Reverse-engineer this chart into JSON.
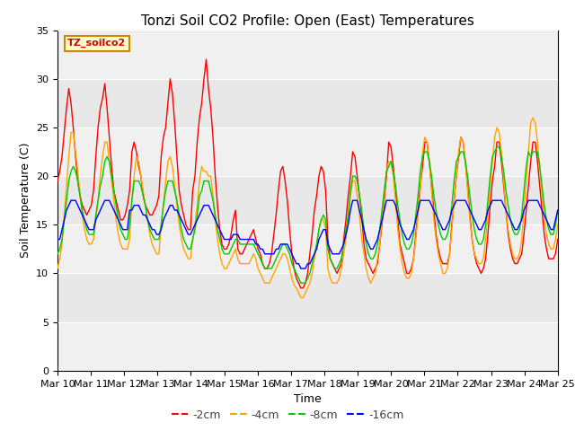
{
  "title": "Tonzi Soil CO2 Profile: Open (East) Temperatures",
  "xlabel": "Time",
  "ylabel": "Soil Temperature (C)",
  "ylim": [
    0,
    35
  ],
  "yticks": [
    0,
    5,
    10,
    15,
    20,
    25,
    30,
    35
  ],
  "legend_label": "TZ_soilco2",
  "series_labels": [
    "-2cm",
    "-4cm",
    "-8cm",
    "-16cm"
  ],
  "series_colors": [
    "#ff0000",
    "#ffa500",
    "#00cc00",
    "#0000ff"
  ],
  "background_color": "#ffffff",
  "plot_bg_color": "#e8e8e8",
  "title_fontsize": 11,
  "axis_fontsize": 9,
  "tick_fontsize": 8,
  "legend_box_facecolor": "#ffffcc",
  "legend_box_edgecolor": "#cc8800",
  "depth_2cm": [
    19.5,
    20.5,
    22.0,
    24.5,
    27.0,
    29.0,
    27.5,
    25.0,
    22.0,
    19.5,
    18.0,
    17.0,
    16.5,
    16.0,
    16.5,
    17.0,
    18.5,
    22.0,
    25.0,
    27.0,
    28.0,
    29.5,
    27.0,
    24.0,
    21.0,
    18.5,
    17.5,
    16.5,
    15.5,
    15.5,
    16.0,
    17.0,
    18.5,
    22.5,
    23.5,
    22.5,
    21.0,
    20.0,
    18.0,
    17.0,
    16.5,
    16.0,
    16.0,
    16.5,
    17.0,
    18.0,
    22.0,
    24.0,
    25.0,
    27.5,
    30.0,
    28.5,
    25.5,
    22.0,
    18.5,
    17.0,
    16.0,
    15.0,
    14.5,
    14.5,
    18.5,
    20.0,
    23.5,
    26.0,
    27.5,
    30.0,
    32.0,
    29.0,
    27.0,
    24.0,
    20.0,
    17.0,
    14.5,
    13.0,
    12.5,
    12.5,
    13.0,
    14.0,
    15.5,
    16.5,
    12.5,
    12.0,
    12.0,
    12.5,
    13.0,
    13.5,
    14.0,
    14.5,
    13.5,
    12.5,
    12.0,
    11.0,
    10.5,
    10.5,
    11.0,
    12.0,
    14.0,
    16.0,
    18.5,
    20.5,
    21.0,
    19.5,
    17.5,
    14.5,
    12.0,
    10.5,
    9.5,
    9.0,
    8.5,
    8.5,
    9.0,
    10.0,
    12.0,
    14.0,
    16.5,
    18.0,
    20.0,
    21.0,
    20.5,
    18.5,
    13.5,
    11.5,
    11.0,
    10.5,
    10.0,
    10.5,
    11.0,
    13.5,
    15.5,
    18.0,
    20.0,
    22.5,
    22.0,
    20.0,
    18.0,
    16.0,
    13.0,
    11.5,
    11.0,
    10.5,
    10.0,
    10.5,
    11.0,
    13.0,
    15.0,
    17.5,
    20.0,
    23.5,
    23.0,
    21.0,
    18.5,
    15.5,
    13.0,
    12.0,
    11.0,
    10.0,
    10.0,
    10.5,
    11.5,
    14.0,
    16.5,
    19.0,
    21.0,
    23.5,
    23.5,
    21.5,
    19.0,
    16.5,
    14.0,
    12.5,
    11.5,
    11.0,
    11.0,
    11.0,
    12.0,
    15.0,
    17.5,
    20.0,
    22.0,
    24.0,
    23.5,
    21.5,
    19.0,
    16.0,
    13.5,
    12.0,
    11.0,
    10.5,
    10.0,
    10.5,
    11.5,
    14.0,
    17.0,
    19.5,
    21.0,
    23.5,
    23.5,
    21.5,
    19.0,
    16.5,
    14.0,
    12.5,
    11.5,
    11.0,
    11.0,
    11.5,
    12.0,
    14.0,
    16.5,
    19.0,
    21.5,
    23.5,
    23.5,
    21.5,
    19.0,
    16.5,
    14.0,
    12.5,
    11.5,
    11.5,
    11.5,
    12.0,
    13.5
  ],
  "depth_4cm": [
    10.5,
    11.5,
    13.0,
    16.0,
    19.0,
    22.0,
    24.5,
    24.5,
    22.5,
    20.5,
    18.0,
    16.0,
    14.5,
    13.5,
    13.0,
    13.0,
    13.5,
    15.5,
    17.5,
    20.0,
    22.0,
    23.5,
    23.5,
    21.5,
    19.5,
    17.5,
    15.5,
    14.0,
    13.0,
    12.5,
    12.5,
    12.5,
    13.5,
    17.5,
    20.0,
    22.0,
    21.5,
    20.0,
    18.5,
    17.0,
    15.5,
    14.0,
    13.0,
    12.5,
    12.0,
    12.0,
    15.0,
    17.0,
    19.5,
    21.5,
    22.0,
    21.0,
    19.0,
    17.0,
    15.0,
    13.5,
    12.5,
    12.0,
    11.5,
    11.5,
    13.5,
    15.0,
    17.0,
    19.5,
    21.0,
    20.5,
    20.5,
    20.0,
    20.0,
    18.0,
    15.5,
    13.5,
    12.0,
    11.0,
    10.5,
    10.5,
    11.0,
    11.5,
    12.0,
    12.5,
    11.5,
    11.0,
    11.0,
    11.0,
    11.0,
    11.0,
    11.5,
    12.0,
    11.5,
    10.5,
    10.0,
    9.5,
    9.0,
    9.0,
    9.0,
    9.5,
    10.0,
    10.5,
    11.0,
    11.5,
    12.0,
    12.0,
    11.5,
    10.5,
    9.5,
    8.8,
    8.5,
    8.0,
    7.5,
    7.5,
    8.0,
    8.5,
    9.0,
    10.0,
    11.5,
    13.0,
    14.5,
    15.5,
    15.5,
    14.5,
    10.5,
    9.5,
    9.0,
    9.0,
    9.0,
    9.5,
    10.5,
    12.0,
    13.5,
    15.5,
    18.0,
    19.5,
    19.5,
    18.0,
    16.0,
    13.5,
    12.0,
    10.5,
    9.5,
    9.0,
    9.5,
    10.0,
    11.5,
    13.0,
    15.5,
    18.0,
    20.5,
    21.5,
    21.5,
    20.0,
    17.5,
    14.5,
    12.5,
    11.0,
    10.0,
    9.5,
    9.5,
    10.0,
    11.5,
    13.5,
    16.0,
    18.5,
    22.5,
    24.0,
    23.5,
    21.5,
    18.5,
    15.5,
    13.5,
    12.0,
    11.0,
    10.0,
    10.0,
    10.5,
    12.0,
    14.5,
    17.5,
    20.0,
    22.5,
    24.0,
    23.5,
    21.5,
    18.5,
    15.5,
    13.5,
    12.0,
    11.5,
    11.0,
    11.0,
    11.5,
    13.5,
    16.0,
    19.0,
    21.5,
    24.0,
    25.0,
    24.5,
    22.5,
    19.5,
    16.5,
    14.5,
    13.0,
    12.0,
    11.5,
    11.5,
    12.0,
    13.5,
    16.5,
    19.5,
    22.5,
    25.5,
    26.0,
    25.5,
    23.5,
    21.0,
    18.0,
    15.5,
    14.0,
    13.0,
    12.5,
    12.5,
    13.5,
    15.0
  ],
  "depth_8cm": [
    12.0,
    12.5,
    13.5,
    15.5,
    17.5,
    19.5,
    20.5,
    21.0,
    20.5,
    19.5,
    18.0,
    16.5,
    15.5,
    14.5,
    14.0,
    14.0,
    14.0,
    16.0,
    17.5,
    19.0,
    20.0,
    21.5,
    22.0,
    21.5,
    20.0,
    18.5,
    17.0,
    15.5,
    14.5,
    14.0,
    13.5,
    13.5,
    15.0,
    17.5,
    19.5,
    19.5,
    19.5,
    19.0,
    18.0,
    17.0,
    15.5,
    14.5,
    14.0,
    13.5,
    13.5,
    13.5,
    15.0,
    17.0,
    18.5,
    19.5,
    19.5,
    19.5,
    18.5,
    17.5,
    16.0,
    14.5,
    13.5,
    13.0,
    12.5,
    12.5,
    13.5,
    14.5,
    16.0,
    18.0,
    18.5,
    19.5,
    19.5,
    19.5,
    18.5,
    17.5,
    16.0,
    14.5,
    13.5,
    12.5,
    12.0,
    12.0,
    12.0,
    12.5,
    13.0,
    13.5,
    13.5,
    13.0,
    13.0,
    13.0,
    13.0,
    13.0,
    13.0,
    13.0,
    12.5,
    12.0,
    11.5,
    11.0,
    10.5,
    10.5,
    10.5,
    10.5,
    11.0,
    11.5,
    12.0,
    12.5,
    13.0,
    13.0,
    12.5,
    12.0,
    11.0,
    10.5,
    10.0,
    9.5,
    9.0,
    9.0,
    9.0,
    9.5,
    10.0,
    11.0,
    12.0,
    13.0,
    14.5,
    15.5,
    16.0,
    15.5,
    12.5,
    11.5,
    11.0,
    10.5,
    10.5,
    11.0,
    11.5,
    13.0,
    14.5,
    16.0,
    18.5,
    20.0,
    20.0,
    19.5,
    18.0,
    16.5,
    14.5,
    13.0,
    12.0,
    11.5,
    11.5,
    12.0,
    13.0,
    14.5,
    16.5,
    18.5,
    20.5,
    21.0,
    21.5,
    20.5,
    19.0,
    17.0,
    15.5,
    14.0,
    13.0,
    12.5,
    12.5,
    13.0,
    14.0,
    16.0,
    18.0,
    20.5,
    22.0,
    22.5,
    22.5,
    21.5,
    20.0,
    18.0,
    16.5,
    15.0,
    14.0,
    13.5,
    13.5,
    14.0,
    15.0,
    17.0,
    19.5,
    21.5,
    22.0,
    22.5,
    22.5,
    21.5,
    20.0,
    18.0,
    16.0,
    14.5,
    13.5,
    13.0,
    13.0,
    13.5,
    15.0,
    17.5,
    20.0,
    22.0,
    22.5,
    23.0,
    23.0,
    22.0,
    20.5,
    18.5,
    17.0,
    15.5,
    14.5,
    14.0,
    14.0,
    14.5,
    16.0,
    18.5,
    21.0,
    22.5,
    22.0,
    22.5,
    22.5,
    22.5,
    21.0,
    19.0,
    17.0,
    15.5,
    14.5,
    14.0,
    14.0,
    15.0,
    16.5
  ],
  "depth_16cm": [
    13.5,
    13.5,
    14.5,
    15.5,
    16.5,
    17.0,
    17.5,
    17.5,
    17.5,
    17.0,
    16.5,
    16.0,
    15.5,
    15.0,
    14.5,
    14.5,
    14.5,
    15.5,
    16.0,
    16.5,
    17.0,
    17.5,
    17.5,
    17.5,
    17.0,
    16.5,
    16.0,
    15.5,
    15.0,
    14.5,
    14.5,
    14.5,
    16.5,
    16.5,
    17.0,
    17.0,
    17.0,
    16.5,
    16.0,
    16.0,
    15.5,
    15.0,
    14.5,
    14.5,
    14.0,
    14.0,
    14.5,
    15.5,
    16.0,
    16.5,
    17.0,
    17.0,
    16.5,
    16.5,
    16.0,
    15.5,
    15.0,
    14.5,
    14.0,
    14.0,
    14.5,
    15.0,
    15.5,
    16.0,
    16.5,
    17.0,
    17.0,
    17.0,
    16.5,
    16.0,
    15.5,
    15.0,
    14.5,
    14.0,
    13.5,
    13.5,
    13.5,
    13.5,
    14.0,
    14.0,
    14.0,
    13.5,
    13.5,
    13.5,
    13.5,
    13.5,
    13.5,
    13.5,
    13.0,
    13.0,
    12.5,
    12.5,
    12.0,
    12.0,
    12.0,
    12.0,
    12.0,
    12.5,
    12.5,
    13.0,
    13.0,
    13.0,
    13.0,
    12.5,
    12.0,
    11.5,
    11.0,
    11.0,
    10.5,
    10.5,
    10.5,
    11.0,
    11.0,
    11.5,
    12.0,
    12.5,
    13.5,
    14.0,
    14.5,
    14.5,
    13.0,
    12.5,
    12.0,
    12.0,
    12.0,
    12.0,
    12.5,
    13.0,
    14.0,
    15.0,
    16.5,
    17.5,
    17.5,
    17.5,
    16.5,
    15.5,
    14.5,
    13.5,
    13.0,
    12.5,
    12.5,
    13.0,
    13.5,
    14.5,
    15.5,
    16.5,
    17.5,
    17.5,
    17.5,
    17.5,
    17.0,
    16.0,
    15.0,
    14.5,
    14.0,
    13.5,
    13.5,
    14.0,
    14.5,
    15.5,
    16.5,
    17.5,
    17.5,
    17.5,
    17.5,
    17.5,
    17.0,
    16.5,
    16.0,
    15.5,
    15.0,
    14.5,
    14.5,
    15.0,
    15.5,
    16.5,
    17.0,
    17.5,
    17.5,
    17.5,
    17.5,
    17.5,
    17.0,
    16.5,
    16.0,
    15.5,
    15.0,
    14.5,
    14.5,
    15.0,
    15.5,
    16.5,
    17.0,
    17.5,
    17.5,
    17.5,
    17.5,
    17.5,
    17.0,
    16.5,
    16.0,
    15.5,
    15.0,
    14.5,
    14.5,
    15.0,
    15.5,
    16.5,
    17.0,
    17.5,
    17.5,
    17.5,
    17.5,
    17.5,
    17.0,
    16.5,
    16.0,
    15.5,
    15.0,
    14.5,
    14.5,
    15.5,
    16.5
  ]
}
